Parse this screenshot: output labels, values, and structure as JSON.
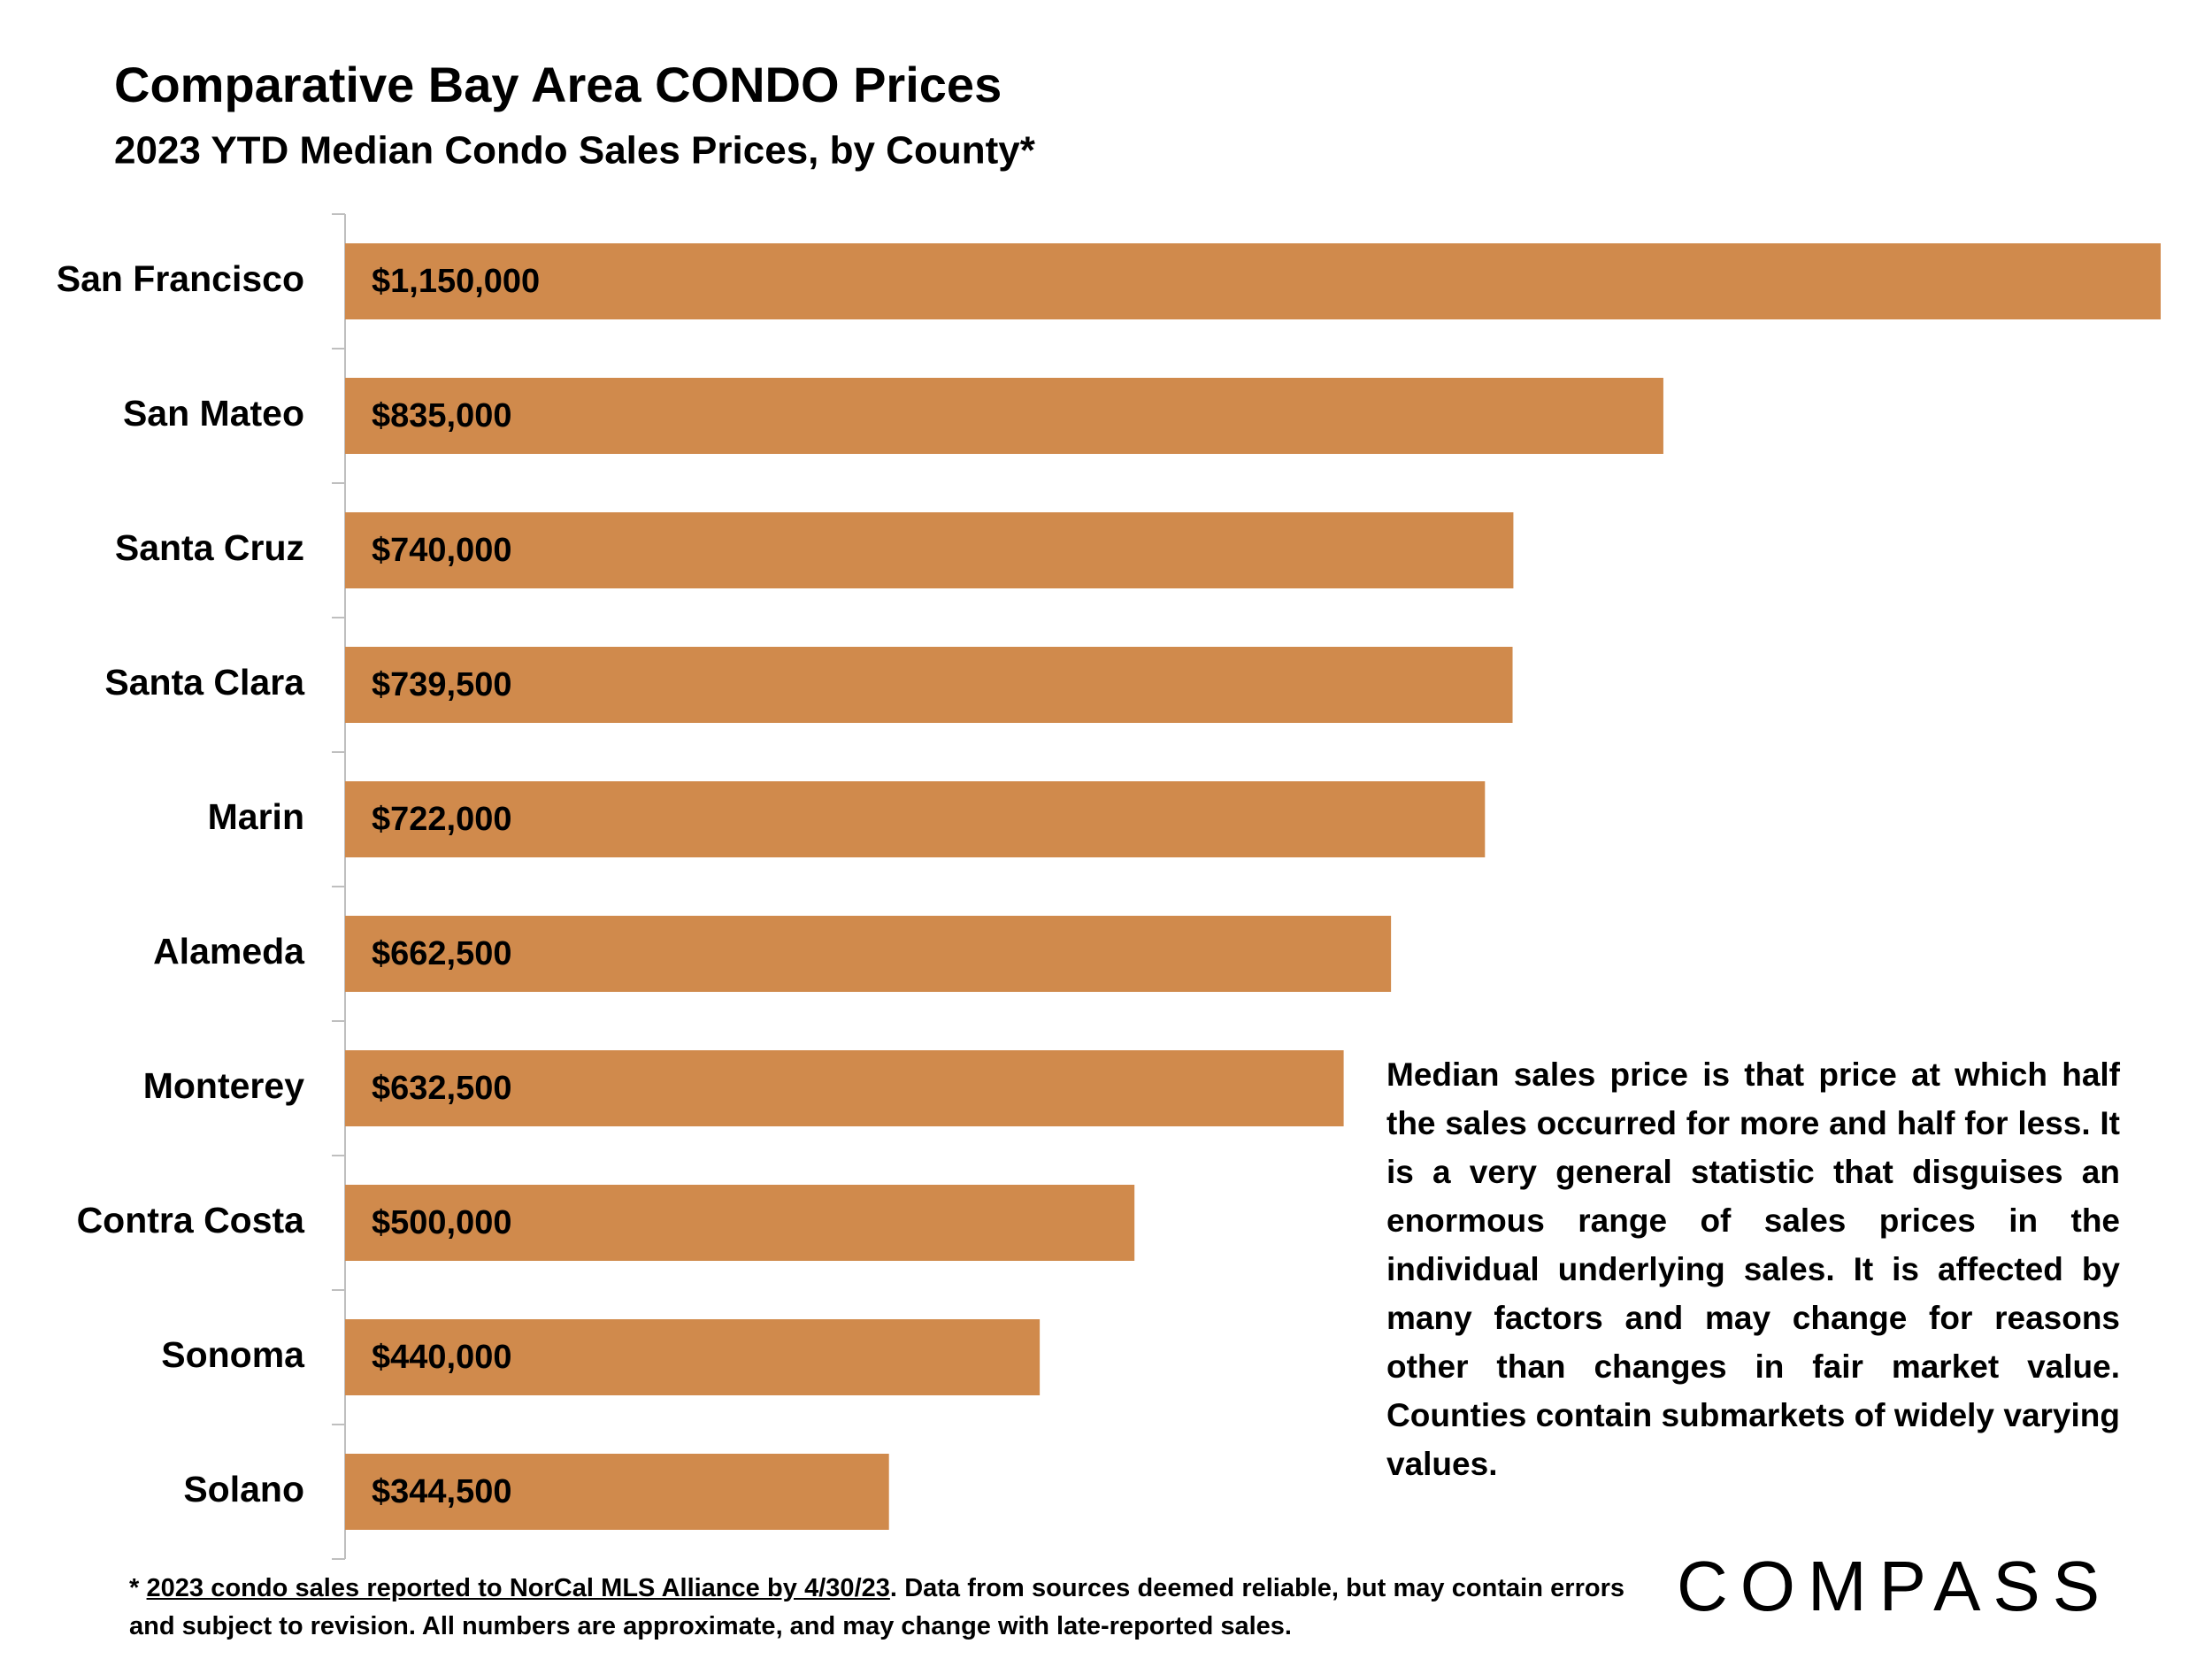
{
  "chart_data": {
    "type": "bar",
    "orientation": "horizontal",
    "title": "Comparative Bay Area CONDO Prices",
    "subtitle": "2023 YTD Median Condo Sales Prices, by County*",
    "categories": [
      "San Francisco",
      "San Mateo",
      "Santa Cruz",
      "Santa Clara",
      "Marin",
      "Alameda",
      "Monterey",
      "Contra Costa",
      "Sonoma",
      "Solano"
    ],
    "values": [
      1150000,
      835000,
      740000,
      739500,
      722000,
      662500,
      632500,
      500000,
      440000,
      344500
    ],
    "value_labels": [
      "$1,150,000",
      "$835,000",
      "$740,000",
      "$739,500",
      "$722,000",
      "$662,500",
      "$632,500",
      "$500,000",
      "$440,000",
      "$344,500"
    ],
    "color": "#d08a4c",
    "annotation": "Median sales price is that price at which half the sales occurred for more and half for less. It is a very general statistic that disguises an enormous range of sales prices in the individual underlying sales. It is affected by many factors and may change for reasons other than changes in fair market value. Counties contain submarkets of widely varying values."
  },
  "footnote": {
    "prefix": "*",
    "link": "2023 condo sales reported to NorCal MLS Alliance by 4/30/23",
    "rest": ". Data from sources deemed reliable, but may contain errors and subject to revision. All numbers are approximate, and may change with late-reported sales."
  },
  "logo": "COMPASS"
}
